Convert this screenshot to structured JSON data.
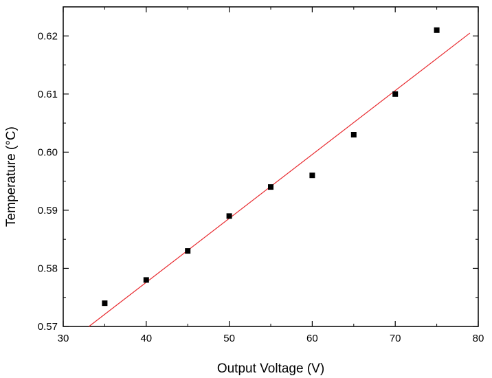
{
  "chart_data": {
    "type": "scatter",
    "title": "",
    "xlabel": "Output Voltage (V)",
    "ylabel": "Temperature (°C)",
    "xlim": [
      30,
      80
    ],
    "ylim": [
      0.57,
      0.625
    ],
    "xticks": [
      30,
      40,
      50,
      60,
      70,
      80
    ],
    "xtick_labels": [
      "30",
      "40",
      "50",
      "60",
      "70",
      "80"
    ],
    "yticks": [
      0.57,
      0.58,
      0.59,
      0.6,
      0.61,
      0.62
    ],
    "ytick_labels": [
      "0.57",
      "0.58",
      "0.59",
      "0.60",
      "0.61",
      "0.62"
    ],
    "grid": false,
    "series": [
      {
        "kind": "points",
        "marker": "square",
        "color": "#000000",
        "x": [
          35,
          40,
          45,
          50,
          55,
          60,
          65,
          70,
          75
        ],
        "y": [
          0.574,
          0.578,
          0.583,
          0.589,
          0.594,
          0.596,
          0.603,
          0.61,
          0.621
        ]
      },
      {
        "kind": "fit-line",
        "color": "#e8292e",
        "x": [
          33.1,
          79.0
        ],
        "y": [
          0.57,
          0.6205
        ]
      }
    ]
  }
}
